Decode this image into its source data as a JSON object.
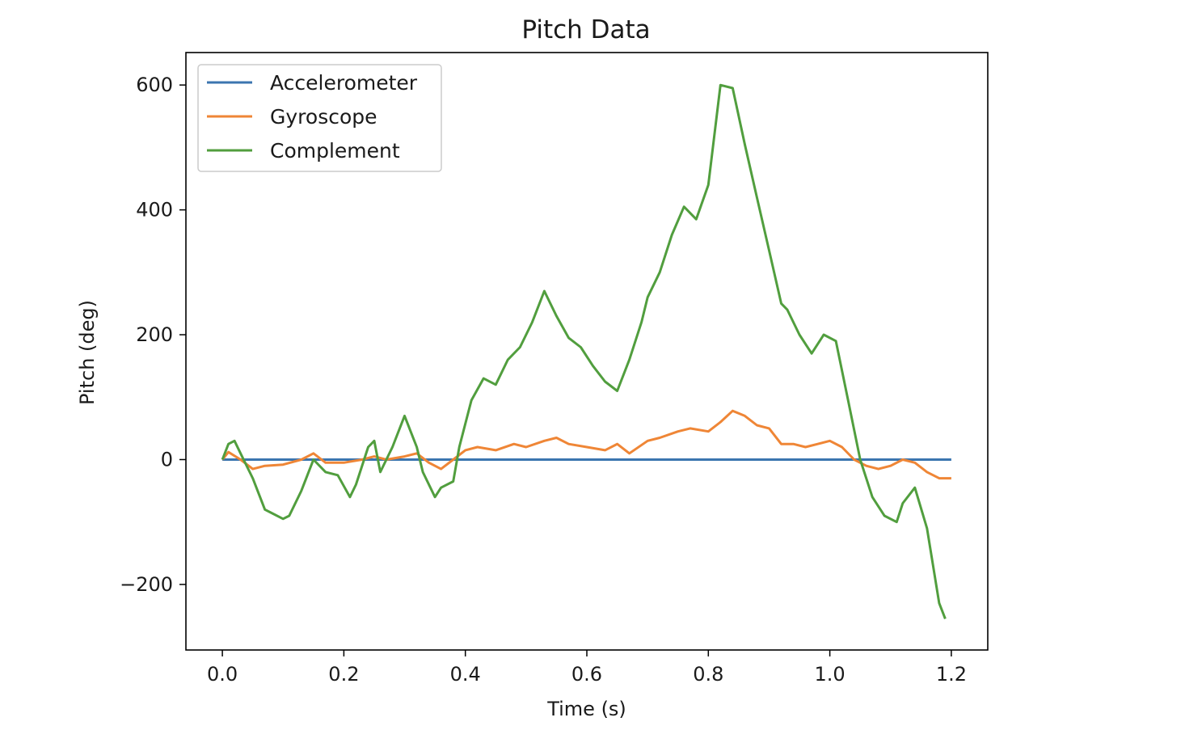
{
  "chart_data": {
    "type": "line",
    "title": "Pitch Data",
    "xlabel": "Time (s)",
    "ylabel": "Pitch (deg)",
    "xlim": [
      -0.06,
      1.26
    ],
    "ylim": [
      -305,
      652
    ],
    "xticks": [
      0.0,
      0.2,
      0.4,
      0.6,
      0.8,
      1.0,
      1.2
    ],
    "xtick_labels": [
      "0.0",
      "0.2",
      "0.4",
      "0.6",
      "0.8",
      "1.0",
      "1.2"
    ],
    "yticks": [
      -200,
      0,
      200,
      400,
      600
    ],
    "ytick_labels": [
      "−200",
      "0",
      "200",
      "400",
      "600"
    ],
    "grid": false,
    "legend_position": "upper-left",
    "series": [
      {
        "name": "Accelerometer",
        "color": "#3b75af",
        "x": [
          0.0,
          0.1,
          0.2,
          0.3,
          0.4,
          0.5,
          0.6,
          0.7,
          0.8,
          0.9,
          1.0,
          1.1,
          1.2
        ],
        "y": [
          0,
          0,
          0,
          0,
          0,
          0,
          0,
          0,
          0,
          0,
          0,
          0,
          0
        ]
      },
      {
        "name": "Gyroscope",
        "color": "#ef8636",
        "x": [
          0.0,
          0.01,
          0.03,
          0.05,
          0.07,
          0.1,
          0.13,
          0.15,
          0.17,
          0.2,
          0.23,
          0.25,
          0.27,
          0.3,
          0.32,
          0.34,
          0.36,
          0.38,
          0.4,
          0.42,
          0.45,
          0.48,
          0.5,
          0.53,
          0.55,
          0.57,
          0.6,
          0.63,
          0.65,
          0.67,
          0.7,
          0.72,
          0.75,
          0.77,
          0.8,
          0.82,
          0.84,
          0.86,
          0.88,
          0.9,
          0.92,
          0.94,
          0.96,
          0.98,
          1.0,
          1.02,
          1.04,
          1.06,
          1.08,
          1.1,
          1.12,
          1.14,
          1.16,
          1.18,
          1.2
        ],
        "y": [
          0,
          12,
          0,
          -15,
          -10,
          -8,
          0,
          10,
          -5,
          -5,
          0,
          5,
          0,
          5,
          10,
          -5,
          -15,
          0,
          15,
          20,
          15,
          25,
          20,
          30,
          35,
          25,
          20,
          15,
          25,
          10,
          30,
          35,
          45,
          50,
          45,
          60,
          78,
          70,
          55,
          50,
          25,
          25,
          20,
          25,
          30,
          20,
          0,
          -10,
          -15,
          -10,
          0,
          -5,
          -20,
          -30,
          -30
        ]
      },
      {
        "name": "Complement",
        "color": "#519e3e",
        "x": [
          0.0,
          0.01,
          0.02,
          0.03,
          0.05,
          0.07,
          0.08,
          0.1,
          0.11,
          0.13,
          0.15,
          0.17,
          0.19,
          0.21,
          0.22,
          0.24,
          0.25,
          0.26,
          0.28,
          0.3,
          0.32,
          0.33,
          0.35,
          0.36,
          0.38,
          0.39,
          0.41,
          0.43,
          0.45,
          0.47,
          0.49,
          0.51,
          0.53,
          0.55,
          0.57,
          0.59,
          0.61,
          0.63,
          0.65,
          0.67,
          0.69,
          0.7,
          0.72,
          0.74,
          0.76,
          0.78,
          0.8,
          0.82,
          0.84,
          0.86,
          0.88,
          0.9,
          0.92,
          0.93,
          0.95,
          0.97,
          0.99,
          1.01,
          1.03,
          1.05,
          1.07,
          1.09,
          1.11,
          1.12,
          1.14,
          1.16,
          1.18,
          1.19
        ],
        "y": [
          0,
          25,
          30,
          10,
          -30,
          -80,
          -85,
          -95,
          -90,
          -50,
          0,
          -20,
          -25,
          -60,
          -40,
          20,
          30,
          -20,
          20,
          70,
          20,
          -20,
          -60,
          -45,
          -35,
          20,
          95,
          130,
          120,
          160,
          180,
          220,
          270,
          230,
          195,
          180,
          150,
          125,
          110,
          160,
          220,
          260,
          300,
          360,
          405,
          385,
          440,
          600,
          595,
          505,
          420,
          335,
          250,
          240,
          200,
          170,
          200,
          190,
          95,
          0,
          -60,
          -90,
          -100,
          -70,
          -45,
          -110,
          -230,
          -255
        ]
      }
    ]
  }
}
